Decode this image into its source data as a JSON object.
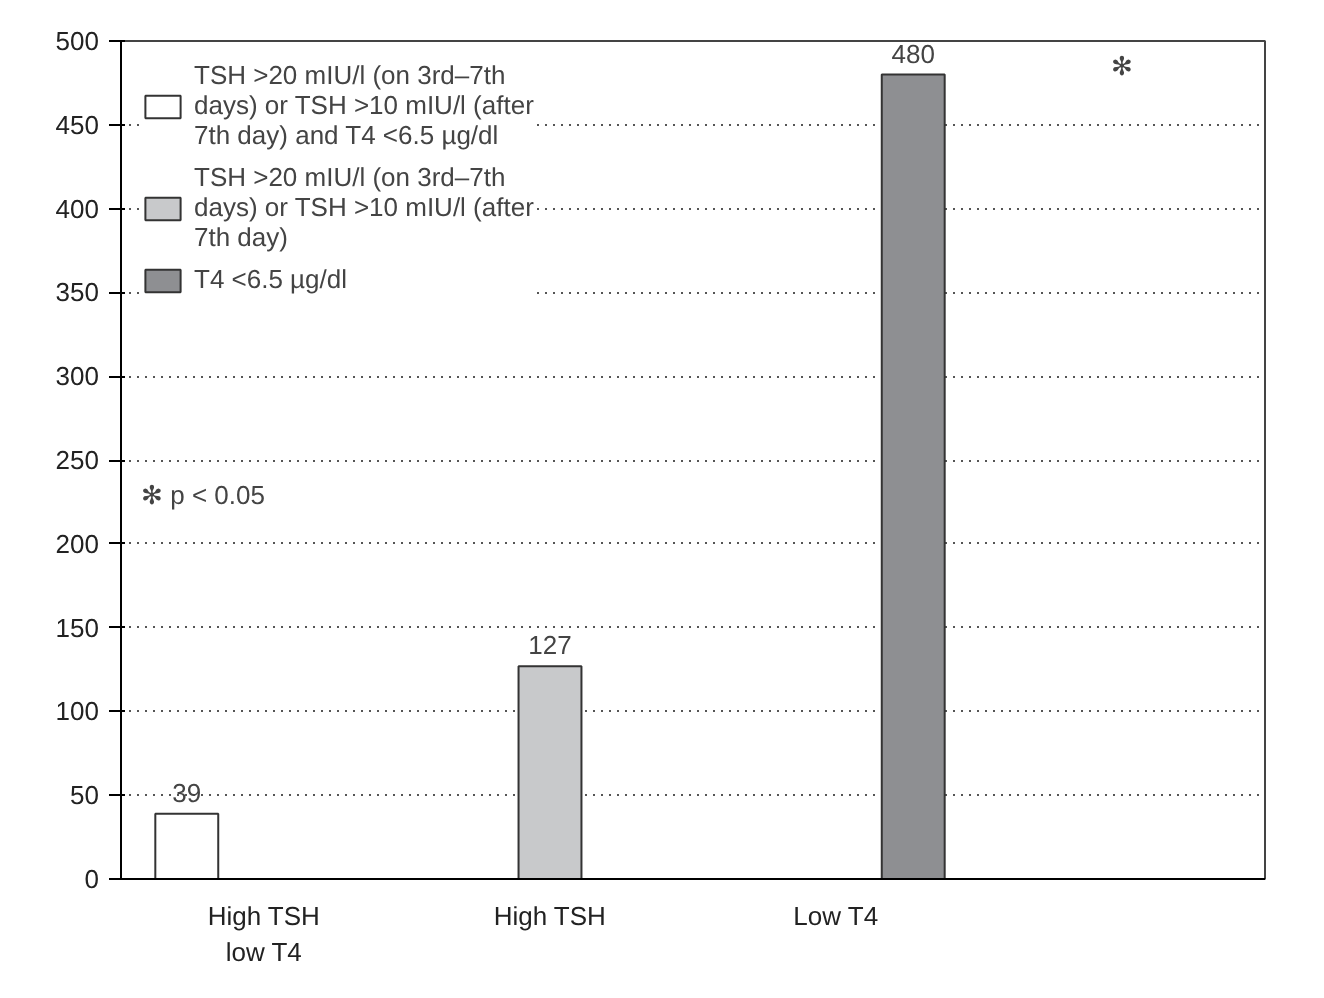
{
  "chart_data": {
    "type": "bar",
    "categories": [
      "High TSH low T4",
      "High TSH",
      "Low T4",
      null
    ],
    "series": [
      {
        "name": "TSH >20 mIU/l (on 3rd–7th days) or TSH >10 mIU/l (after 7th day) and T4 <6.5 µg/dl",
        "color": "#ffffff",
        "values": [
          39,
          null,
          null,
          null
        ]
      },
      {
        "name": "TSH >20 mIU/l (on 3rd–7th days) or TSH >10 mIU/l (after 7th day)",
        "color": "#c8c9cb",
        "values": [
          null,
          127,
          null,
          null
        ]
      },
      {
        "name": "T4 <6.5 µg/dl",
        "color": "#8e8f92",
        "values": [
          null,
          null,
          480,
          null
        ]
      }
    ],
    "ylim": [
      0,
      500
    ],
    "yticks": [
      0,
      50,
      100,
      150,
      200,
      250,
      300,
      350,
      400,
      450,
      500
    ],
    "grid": "y",
    "legend": "top left",
    "data_labels": true,
    "annotations": [
      "✻ p < 0.05",
      "✻"
    ]
  }
}
